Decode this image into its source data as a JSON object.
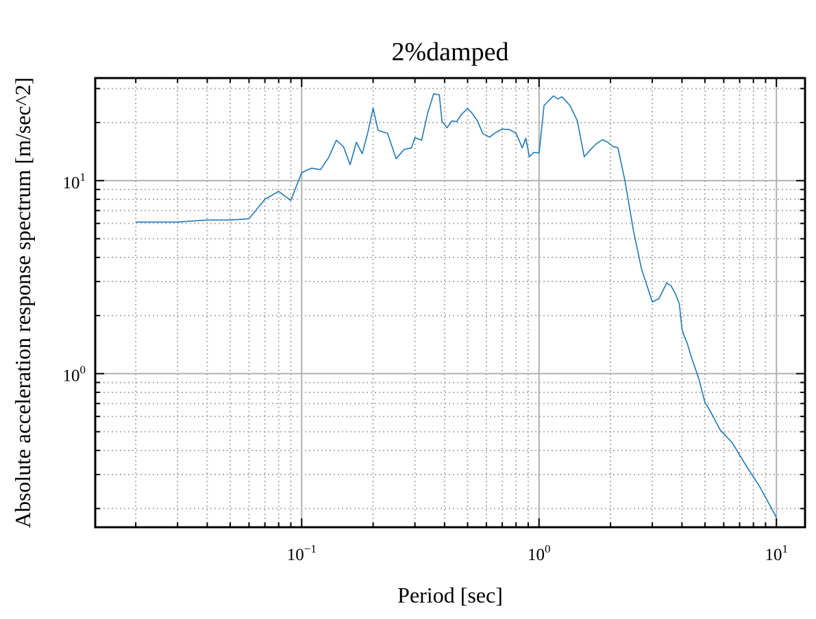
{
  "chart_data": {
    "type": "line",
    "title": "2%damped",
    "xlabel": "Period [sec]",
    "ylabel": "Absolute acceleration response spectrum [m/sec^2]",
    "xscale": "log",
    "yscale": "log",
    "xlim": [
      0.0135,
      13.2
    ],
    "ylim": [
      0.16,
      34.0
    ],
    "grid": {
      "major": "solid",
      "minor": "dotted"
    },
    "x_ticks": [
      {
        "base": "10",
        "exp": "−1",
        "value": 0.1
      },
      {
        "base": "10",
        "exp": "0",
        "value": 1
      },
      {
        "base": "10",
        "exp": "1",
        "value": 10
      }
    ],
    "y_ticks": [
      {
        "base": "10",
        "exp": "0",
        "value": 1
      },
      {
        "base": "10",
        "exp": "1",
        "value": 10
      }
    ],
    "colors": {
      "line": "#1f77b4",
      "major_grid": "#b0b0b0",
      "minor_grid": "#b0b0b0",
      "axes": "#000000"
    },
    "series": [
      {
        "x": [
          0.02,
          0.03,
          0.04,
          0.05,
          0.06,
          0.07,
          0.08,
          0.09,
          0.1,
          0.11,
          0.12,
          0.13,
          0.14,
          0.15,
          0.16,
          0.17,
          0.18,
          0.19,
          0.2,
          0.21,
          0.23,
          0.25,
          0.27,
          0.29,
          0.3,
          0.32,
          0.34,
          0.36,
          0.38,
          0.39,
          0.41,
          0.43,
          0.45,
          0.47,
          0.5,
          0.52,
          0.55,
          0.58,
          0.62,
          0.65,
          0.7,
          0.75,
          0.8,
          0.85,
          0.88,
          0.91,
          0.95,
          1.0,
          1.05,
          1.15,
          1.2,
          1.25,
          1.35,
          1.45,
          1.55,
          1.65,
          1.75,
          1.85,
          1.95,
          2.05,
          2.15,
          2.3,
          2.5,
          2.7,
          3.0,
          3.2,
          3.45,
          3.6,
          3.75,
          3.9,
          4.0,
          4.1,
          4.2,
          4.4,
          4.7,
          5.0,
          5.3,
          5.8,
          6.5,
          7.5,
          8.5,
          10.0
        ],
        "values": [
          6.1,
          6.1,
          6.25,
          6.25,
          6.35,
          8.0,
          8.8,
          7.9,
          11.0,
          11.6,
          11.4,
          13.2,
          16.2,
          15.0,
          12.1,
          15.8,
          13.8,
          17.8,
          23.7,
          18.2,
          17.6,
          13.0,
          14.5,
          14.8,
          16.7,
          16.2,
          22.5,
          28.2,
          27.8,
          20.3,
          18.8,
          20.4,
          20.2,
          22.0,
          23.6,
          22.5,
          20.4,
          17.5,
          16.8,
          17.6,
          18.5,
          18.4,
          17.6,
          14.8,
          16.6,
          13.3,
          14.0,
          13.9,
          24.5,
          27.5,
          26.5,
          27.2,
          24.5,
          20.4,
          13.3,
          14.5,
          15.6,
          16.3,
          15.8,
          15.0,
          14.8,
          10.0,
          5.5,
          3.5,
          2.35,
          2.45,
          2.95,
          2.85,
          2.6,
          2.3,
          1.7,
          1.55,
          1.45,
          1.2,
          0.95,
          0.71,
          0.63,
          0.51,
          0.44,
          0.33,
          0.26,
          0.18
        ]
      }
    ]
  }
}
